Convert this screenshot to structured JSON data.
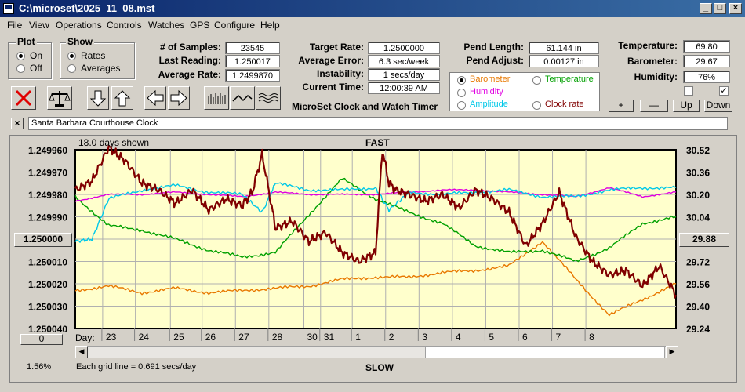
{
  "window": {
    "title": "C:\\microset\\2025_11_08.mst"
  },
  "menu": [
    "File",
    "View",
    "Operations",
    "Controls",
    "Watches",
    "GPS",
    "Configure",
    "Help"
  ],
  "plot_group": {
    "title": "Plot",
    "on": "On",
    "off": "Off",
    "selected": "On"
  },
  "show_group": {
    "title": "Show",
    "rates": "Rates",
    "averages": "Averages",
    "selected": "Rates"
  },
  "stats": {
    "samples_label": "# of Samples:",
    "samples": "23545",
    "last_label": "Last Reading:",
    "last": "1.250017",
    "avg_label": "Average Rate:",
    "avg": "1.2499870"
  },
  "rates": {
    "target_label": "Target Rate:",
    "target": "1.2500000",
    "error_label": "Average Error:",
    "error": "6.3 sec/week",
    "instability_label": "Instability:",
    "instability": "1 secs/day",
    "time_label": "Current Time:",
    "time": "12:00:39 AM"
  },
  "app_heading": "MicroSet Clock and Watch Timer",
  "pendulum": {
    "length_label": "Pend Length:",
    "length": "61.144 in",
    "adjust_label": "Pend Adjust:",
    "adjust": "0.00127 in"
  },
  "env": {
    "temp_label": "Temperature:",
    "temp": "69.80",
    "baro_label": "Barometer:",
    "baro": "29.67",
    "hum_label": "Humidity:",
    "hum": "76%"
  },
  "overlay_options": [
    {
      "label": "Barometer",
      "color": "#e87800",
      "selected": true
    },
    {
      "label": "Temperature",
      "color": "#00a000",
      "selected": false
    },
    {
      "label": "Humidity",
      "color": "#e000e0",
      "selected": false
    },
    {
      "label": "Clock rate",
      "color": "#800000",
      "selected": false
    },
    {
      "label": "Amplitude",
      "color": "#00c8e8",
      "selected": false
    }
  ],
  "small_buttons": {
    "plus": "+",
    "minus": "—",
    "up": "Up",
    "down": "Down",
    "zero": "0"
  },
  "checkboxes": {
    "left": false,
    "right": true
  },
  "comment": {
    "close": "×",
    "text": "Santa Barbara Courthouse Clock"
  },
  "chart_header": {
    "days_shown": "18.0 days shown",
    "top": "FAST",
    "bottom": "SLOW"
  },
  "chart_footer": {
    "grid_note": "Each grid line = 0.691 secs/day",
    "zoom": "1.56%",
    "day_label": "Day:"
  },
  "center_value": "1.250000",
  "right_center_value": "29.88",
  "chart_data": {
    "type": "line",
    "left_axis": {
      "ticks": [
        "1.249960",
        "1.249970",
        "1.249980",
        "1.249990",
        "1.250000",
        "1.250010",
        "1.250020",
        "1.250030",
        "1.250040"
      ],
      "range": [
        1.24996,
        1.25004
      ]
    },
    "right_axis": {
      "ticks": [
        "30.52",
        "30.36",
        "30.20",
        "30.04",
        "29.88",
        "29.72",
        "29.56",
        "29.40",
        "29.24"
      ],
      "range": [
        29.24,
        30.52
      ]
    },
    "x_days": [
      "23",
      "24",
      "25",
      "26",
      "27",
      "28",
      "30",
      "31",
      "1",
      "2",
      "3",
      "4",
      "5",
      "6",
      "7",
      "8"
    ],
    "grid": true,
    "series": [
      {
        "key": "barometer",
        "color": "#e87800",
        "x": [
          0,
          1,
          2,
          3,
          4,
          5,
          6,
          7,
          8,
          9,
          10,
          11,
          12,
          13,
          14,
          15,
          16,
          17,
          18
        ],
        "y": [
          1.250023,
          1.250021,
          1.250024,
          1.250022,
          1.250024,
          1.250023,
          1.250022,
          1.250021,
          1.250018,
          1.250017,
          1.250017,
          1.250015,
          1.250014,
          1.250012,
          1.250001,
          1.250018,
          1.250034,
          1.250027,
          1.25002
        ]
      },
      {
        "key": "temperature",
        "color": "#00a000",
        "x": [
          0,
          1,
          2,
          3,
          4,
          5,
          6,
          7,
          8,
          9,
          10,
          11,
          12,
          13,
          14,
          15,
          16,
          17,
          18
        ],
        "y": [
          1.249981,
          1.249994,
          1.249996,
          1.25,
          1.250005,
          1.250008,
          1.250006,
          1.249989,
          1.249973,
          1.249982,
          1.249988,
          1.249993,
          1.250003,
          1.250006,
          1.250005,
          1.25001,
          1.250004,
          1.249993,
          1.24999
        ]
      },
      {
        "key": "humidity",
        "color": "#e000e0",
        "x": [
          0,
          1,
          2,
          3,
          4,
          5,
          6,
          7,
          8,
          9,
          10,
          11,
          12,
          13,
          14,
          15,
          16,
          17,
          18
        ],
        "y": [
          1.249983,
          1.24998,
          1.24998,
          1.249979,
          1.24998,
          1.249981,
          1.249979,
          1.24998,
          1.24998,
          1.24998,
          1.249979,
          1.249978,
          1.249978,
          1.249979,
          1.24998,
          1.249981,
          1.249977,
          1.249981,
          1.249979
        ]
      },
      {
        "key": "amplitude",
        "color": "#00c8e8",
        "x": [
          0,
          0.5,
          1,
          2,
          3,
          4,
          5,
          5.6,
          6,
          7,
          8,
          9,
          9.4,
          10,
          11,
          12,
          13,
          14,
          15,
          16,
          17,
          18
        ],
        "y": [
          1.250001,
          1.25,
          1.249982,
          1.249978,
          1.249976,
          1.249979,
          1.24998,
          1.249988,
          1.249975,
          1.249978,
          1.249978,
          1.249977,
          1.249987,
          1.249979,
          1.24998,
          1.249979,
          1.249978,
          1.249981,
          1.249981,
          1.249978,
          1.249977,
          1.249977
        ]
      },
      {
        "key": "clock_rate",
        "color": "#800000",
        "x": [
          0,
          0.5,
          1,
          1.5,
          2,
          2.5,
          3,
          3.5,
          4,
          4.5,
          5,
          5.3,
          5.6,
          6,
          6.5,
          7,
          7.5,
          8,
          8.5,
          9,
          9.2,
          9.4,
          9.6,
          10,
          10.5,
          11,
          11.5,
          12,
          12.5,
          13,
          13.5,
          14,
          14.5,
          15,
          15.5,
          16,
          16.5,
          17,
          17.5,
          18
        ],
        "y": [
          1.249978,
          1.249974,
          1.249959,
          1.249965,
          1.249975,
          1.249978,
          1.249984,
          1.249978,
          1.249987,
          1.249982,
          1.249985,
          1.249979,
          1.249962,
          1.249995,
          1.249992,
          1.250001,
          1.249997,
          1.250006,
          1.25001,
          1.250006,
          1.24996,
          1.249975,
          1.249978,
          1.24998,
          1.249983,
          1.24998,
          1.249986,
          1.249978,
          1.249982,
          1.249988,
          1.250003,
          1.249993,
          1.249979,
          1.249999,
          1.25001,
          1.250016,
          1.250014,
          1.250021,
          1.250012,
          1.250025
        ]
      }
    ]
  }
}
